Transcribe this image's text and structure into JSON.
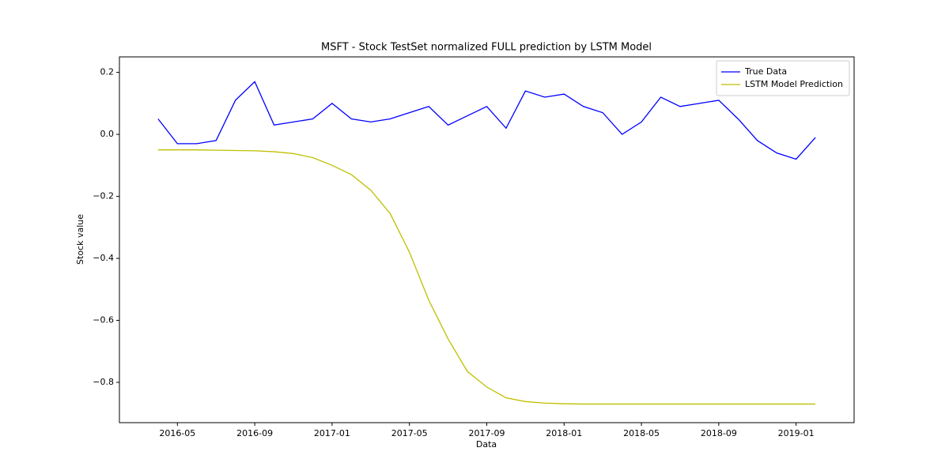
{
  "chart_data": {
    "type": "line",
    "title": "MSFT - Stock TestSet normalized FULL prediction by LSTM Model",
    "x_label": "Data",
    "y_label": "Stock value",
    "x": [
      "2016-04",
      "2016-05",
      "2016-06",
      "2016-07",
      "2016-08",
      "2016-09",
      "2016-10",
      "2016-11",
      "2016-12",
      "2017-01",
      "2017-02",
      "2017-03",
      "2017-04",
      "2017-05",
      "2017-06",
      "2017-07",
      "2017-08",
      "2017-09",
      "2017-10",
      "2017-11",
      "2017-12",
      "2018-01",
      "2018-02",
      "2018-03",
      "2018-04",
      "2018-05",
      "2018-06",
      "2018-07",
      "2018-08",
      "2018-09",
      "2018-10",
      "2018-11",
      "2018-12",
      "2019-01",
      "2019-02"
    ],
    "series": [
      {
        "name": "True Data",
        "color": "#0000ff",
        "values": [
          0.05,
          -0.03,
          -0.03,
          -0.02,
          0.11,
          0.17,
          0.03,
          0.04,
          0.05,
          0.1,
          0.05,
          0.04,
          0.05,
          0.07,
          0.09,
          0.03,
          0.06,
          0.09,
          0.02,
          0.14,
          0.12,
          0.13,
          0.09,
          0.07,
          0.0,
          0.04,
          0.12,
          0.09,
          0.1,
          0.11,
          0.05,
          -0.02,
          -0.06,
          -0.08,
          -0.01
        ]
      },
      {
        "name": "LSTM Model Prediction",
        "color": "#bfbf00",
        "values": [
          -0.05,
          -0.05,
          -0.05,
          -0.051,
          -0.052,
          -0.053,
          -0.056,
          -0.062,
          -0.075,
          -0.1,
          -0.13,
          -0.18,
          -0.255,
          -0.38,
          -0.535,
          -0.66,
          -0.765,
          -0.815,
          -0.85,
          -0.862,
          -0.867,
          -0.869,
          -0.87,
          -0.87,
          -0.87,
          -0.87,
          -0.87,
          -0.87,
          -0.87,
          -0.87,
          -0.87,
          -0.87,
          -0.87,
          -0.87,
          -0.87
        ]
      }
    ],
    "xlim": [
      "2016-02",
      "2019-04"
    ],
    "xticks": [
      "2016-05",
      "2016-09",
      "2017-01",
      "2017-05",
      "2017-09",
      "2018-01",
      "2018-05",
      "2018-09",
      "2019-01"
    ],
    "ylim": [
      -0.93,
      0.25
    ],
    "yticks": [
      {
        "value": -0.8,
        "label": "−0.8"
      },
      {
        "value": -0.6,
        "label": "−0.6"
      },
      {
        "value": -0.4,
        "label": "−0.4"
      },
      {
        "value": -0.2,
        "label": "−0.2"
      },
      {
        "value": 0,
        "label": "0.0"
      },
      0.2
    ],
    "grid": false,
    "legend": "upper right"
  }
}
